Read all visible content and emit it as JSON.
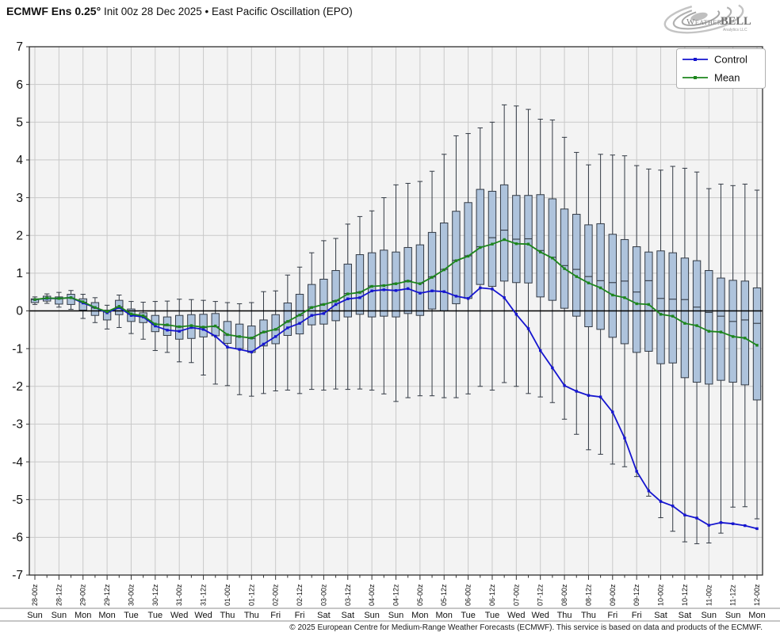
{
  "header": {
    "title_bold": "ECMWF Ens 0.25°",
    "title_rest": " Init 00z 28 Dec 2025 • East Pacific Oscillation (EPO)"
  },
  "logo": {
    "brand_weather": "Weather",
    "brand_bell": "BELL",
    "brand_sub": "Analytics LLC"
  },
  "footer": {
    "copyright": "© 2025 European Centre for Medium-Range Weather Forecasts (ECMWF). This service is based on data and products of the ECMWF."
  },
  "chart_data": {
    "type": "boxplot+line",
    "title": "ECMWF Ens 0.25° Init 00z 28 Dec 2025 • East Pacific Oscillation (EPO)",
    "ylabel": "",
    "ylim": [
      -7,
      7
    ],
    "ytick_step": 1,
    "grid": true,
    "legend_position": "upper right",
    "points_per_label": 2,
    "x_time_labels": [
      "28-00z",
      "28-12z",
      "29-00z",
      "29-12z",
      "30-00z",
      "30-12z",
      "31-00z",
      "31-12z",
      "01-00z",
      "01-12z",
      "02-00z",
      "02-12z",
      "03-00z",
      "03-12z",
      "04-00z",
      "04-12z",
      "05-00z",
      "05-12z",
      "06-00z",
      "06-12z",
      "07-00z",
      "07-12z",
      "08-00z",
      "08-12z",
      "09-00z",
      "09-12z",
      "10-00z",
      "10-12z",
      "11-00z",
      "11-12z",
      "12-00z"
    ],
    "x_day_labels": [
      "Sun",
      "Sun",
      "Mon",
      "Mon",
      "Tue",
      "Tue",
      "Wed",
      "Wed",
      "Thu",
      "Thu",
      "Fri",
      "Fri",
      "Sat",
      "Sat",
      "Sun",
      "Sun",
      "Mon",
      "Mon",
      "Tue",
      "Tue",
      "Wed",
      "Wed",
      "Thu",
      "Thu",
      "Fri",
      "Fri",
      "Sat",
      "Sat",
      "Sun",
      "Sun",
      "Mon"
    ],
    "series": [
      {
        "name": "Control",
        "color": "#1515cf",
        "values": [
          0.3,
          0.33,
          0.33,
          0.35,
          0.21,
          0.09,
          -0.05,
          0.09,
          -0.12,
          -0.16,
          -0.4,
          -0.51,
          -0.54,
          -0.44,
          -0.49,
          -0.67,
          -0.96,
          -1.02,
          -1.09,
          -0.88,
          -0.68,
          -0.45,
          -0.33,
          -0.12,
          -0.07,
          0.17,
          0.32,
          0.35,
          0.53,
          0.56,
          0.54,
          0.59,
          0.47,
          0.53,
          0.51,
          0.39,
          0.33,
          0.61,
          0.58,
          0.35,
          -0.09,
          -0.47,
          -1.05,
          -1.51,
          -1.98,
          -2.13,
          -2.24,
          -2.28,
          -2.68,
          -3.37,
          -4.25,
          -4.77,
          -5.05,
          -5.17,
          -5.41,
          -5.49,
          -5.68,
          -5.61,
          -5.64,
          -5.69,
          -5.77
        ]
      },
      {
        "name": "Mean",
        "color": "#1d861d",
        "values": [
          0.3,
          0.34,
          0.33,
          0.35,
          0.24,
          0.09,
          -0.02,
          0.12,
          -0.08,
          -0.13,
          -0.35,
          -0.37,
          -0.42,
          -0.39,
          -0.43,
          -0.4,
          -0.63,
          -0.68,
          -0.72,
          -0.56,
          -0.49,
          -0.28,
          -0.11,
          0.09,
          0.17,
          0.26,
          0.45,
          0.49,
          0.65,
          0.67,
          0.72,
          0.79,
          0.72,
          0.89,
          1.09,
          1.33,
          1.45,
          1.68,
          1.77,
          1.89,
          1.78,
          1.77,
          1.56,
          1.4,
          1.12,
          0.91,
          0.74,
          0.61,
          0.42,
          0.35,
          0.19,
          0.17,
          -0.09,
          -0.14,
          -0.33,
          -0.39,
          -0.54,
          -0.56,
          -0.68,
          -0.72,
          -0.91
        ]
      }
    ],
    "box": {
      "fill": "#aec3dc",
      "stroke": "#333a44",
      "whisker_high": [
        0.37,
        0.45,
        0.49,
        0.54,
        0.44,
        0.35,
        0.15,
        0.42,
        0.25,
        0.23,
        0.25,
        0.26,
        0.31,
        0.3,
        0.28,
        0.25,
        0.22,
        0.19,
        0.22,
        0.51,
        0.53,
        0.95,
        1.16,
        1.54,
        1.86,
        1.92,
        2.3,
        2.5,
        2.65,
        3.0,
        3.34,
        3.38,
        3.43,
        3.7,
        4.15,
        4.64,
        4.7,
        4.85,
        5.0,
        5.46,
        5.43,
        5.34,
        5.08,
        5.06,
        4.6,
        4.2,
        3.87,
        4.15,
        4.13,
        4.11,
        3.85,
        3.76,
        3.73,
        3.83,
        3.78,
        3.68,
        3.24,
        3.36,
        3.32,
        3.36,
        3.2
      ],
      "q3": [
        0.32,
        0.39,
        0.37,
        0.44,
        0.32,
        0.22,
        0.02,
        0.28,
        0.05,
        -0.05,
        -0.12,
        -0.16,
        -0.12,
        -0.1,
        -0.09,
        -0.07,
        -0.28,
        -0.35,
        -0.4,
        -0.24,
        -0.1,
        0.21,
        0.44,
        0.7,
        0.84,
        1.07,
        1.24,
        1.49,
        1.54,
        1.61,
        1.56,
        1.68,
        1.75,
        2.08,
        2.33,
        2.64,
        2.87,
        3.22,
        3.17,
        3.34,
        3.06,
        3.06,
        3.08,
        2.97,
        2.7,
        2.56,
        2.28,
        2.31,
        2.03,
        1.89,
        1.7,
        1.56,
        1.59,
        1.54,
        1.4,
        1.33,
        1.07,
        0.87,
        0.81,
        0.79,
        0.61
      ],
      "median": [
        0.3,
        0.33,
        0.32,
        0.34,
        0.23,
        0.08,
        -0.03,
        0.11,
        -0.09,
        -0.14,
        -0.36,
        -0.39,
        -0.43,
        -0.4,
        -0.44,
        -0.42,
        -0.64,
        -0.69,
        -0.73,
        -0.57,
        -0.5,
        -0.29,
        -0.12,
        0.1,
        0.18,
        0.27,
        0.46,
        0.5,
        0.66,
        0.68,
        0.73,
        0.8,
        0.73,
        0.9,
        1.1,
        1.34,
        1.46,
        1.7,
        1.94,
        2.14,
        1.9,
        1.91,
        1.6,
        1.42,
        1.2,
        1.1,
        0.91,
        0.8,
        0.75,
        0.79,
        0.5,
        0.8,
        0.33,
        0.31,
        0.3,
        0.1,
        -0.04,
        -0.14,
        -0.28,
        -0.24,
        -0.33
      ],
      "q1": [
        0.22,
        0.26,
        0.18,
        0.17,
        0.02,
        -0.12,
        -0.24,
        -0.1,
        -0.28,
        -0.31,
        -0.55,
        -0.65,
        -0.75,
        -0.73,
        -0.69,
        -0.66,
        -0.86,
        -1.0,
        -1.1,
        -0.93,
        -0.87,
        -0.65,
        -0.61,
        -0.37,
        -0.35,
        -0.26,
        -0.16,
        -0.09,
        -0.16,
        -0.14,
        -0.16,
        -0.07,
        -0.12,
        0.05,
        0.0,
        0.19,
        0.33,
        0.7,
        0.65,
        0.79,
        0.75,
        0.74,
        0.37,
        0.28,
        0.07,
        -0.14,
        -0.42,
        -0.49,
        -0.7,
        -0.87,
        -1.1,
        -1.07,
        -1.4,
        -1.38,
        -1.77,
        -1.89,
        -1.94,
        -1.84,
        -1.89,
        -1.96,
        -2.36
      ],
      "whisker_low": [
        0.17,
        0.2,
        0.1,
        0.04,
        -0.2,
        -0.31,
        -0.48,
        -0.44,
        -0.6,
        -0.75,
        -1.05,
        -1.1,
        -1.35,
        -1.37,
        -1.7,
        -1.94,
        -1.98,
        -2.22,
        -2.26,
        -2.19,
        -2.12,
        -2.1,
        -2.19,
        -2.08,
        -2.1,
        -2.07,
        -2.08,
        -2.07,
        -2.1,
        -2.2,
        -2.4,
        -2.3,
        -2.25,
        -2.25,
        -2.3,
        -2.3,
        -2.2,
        -2.0,
        -2.1,
        -1.9,
        -2.0,
        -2.19,
        -2.28,
        -2.43,
        -2.87,
        -3.27,
        -3.68,
        -3.8,
        -4.06,
        -4.13,
        -4.39,
        -4.91,
        -5.48,
        -5.84,
        -6.12,
        -6.17,
        -6.15,
        -5.89,
        -5.2,
        -5.19,
        -5.51
      ]
    },
    "colors": {
      "plot_bg": "#f3f3f3",
      "grid": "#c9c9c9",
      "zero_line": "#000000",
      "border": "#2f2f2f",
      "tick": "#333333",
      "label": "#111111",
      "separator": "#666666"
    }
  }
}
